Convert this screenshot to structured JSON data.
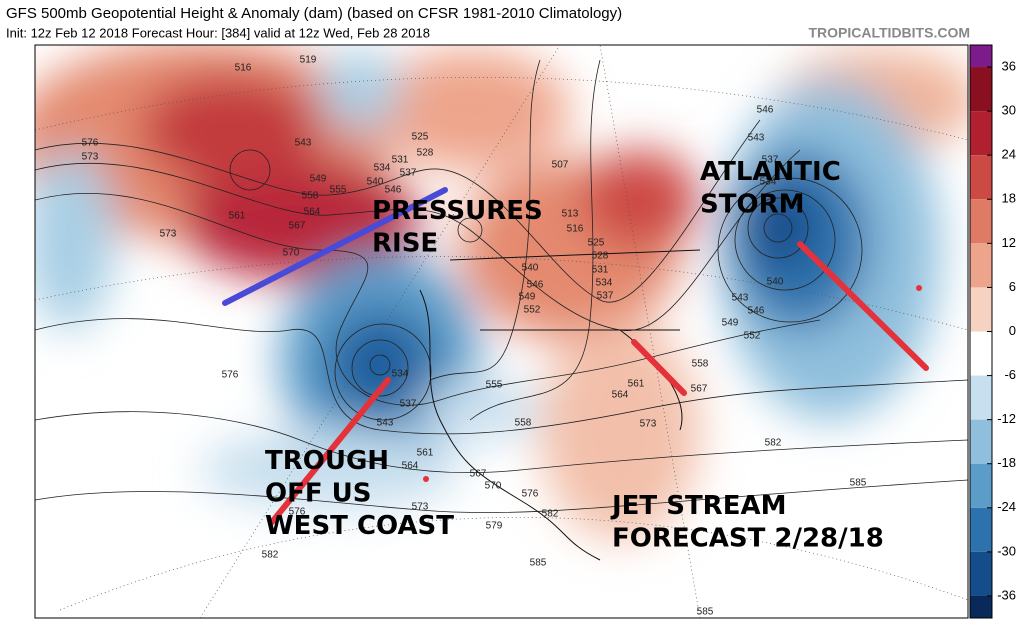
{
  "header": {
    "title": "GFS 500mb Geopotential Height & Anomaly (dam) (based on CFSR 1981-2010 Climatology)",
    "subtitle": "Init: 12z Feb 12 2018   Forecast Hour: [384]   valid at 12z Wed, Feb 28 2018",
    "source": "TROPICALTIDBITS.COM"
  },
  "annotations": {
    "pressures_rise": "PRESSURES\nRISE",
    "atlantic_storm": "ATLANTIC\nSTORM",
    "trough": "TROUGH\nOFF US\nWEST COAST",
    "jet_stream": "JET STREAM\nFORECAST 2/28/18"
  },
  "contour_labels": [
    "516",
    "519",
    "576",
    "573",
    "573",
    "570",
    "561",
    "564",
    "567",
    "558",
    "543",
    "549",
    "555",
    "540",
    "534",
    "531",
    "537",
    "546",
    "525",
    "528",
    "507",
    "513",
    "516",
    "540",
    "546",
    "549",
    "552",
    "525",
    "528",
    "531",
    "534",
    "537",
    "546",
    "543",
    "537",
    "534",
    "540",
    "543",
    "546",
    "549",
    "552",
    "558",
    "561",
    "564",
    "567",
    "573",
    "582",
    "585",
    "576",
    "555",
    "558",
    "561",
    "564",
    "567",
    "570",
    "576",
    "579",
    "582",
    "585",
    "585",
    "573",
    "576",
    "582",
    "543",
    "537",
    "534"
  ],
  "colorbar": {
    "ticks": [
      36,
      30,
      24,
      18,
      12,
      6,
      0,
      -6,
      -12,
      -18,
      -24,
      -30,
      -36
    ],
    "colors": [
      "#7b1c8a",
      "#8a0f20",
      "#b02030",
      "#cc4a44",
      "#df7a64",
      "#eca58c",
      "#f6d2c2",
      "#ffffff",
      "#c7dfee",
      "#8fbfdd",
      "#5b9cc9",
      "#2d72ad",
      "#154c8a",
      "#08295a"
    ]
  }
}
